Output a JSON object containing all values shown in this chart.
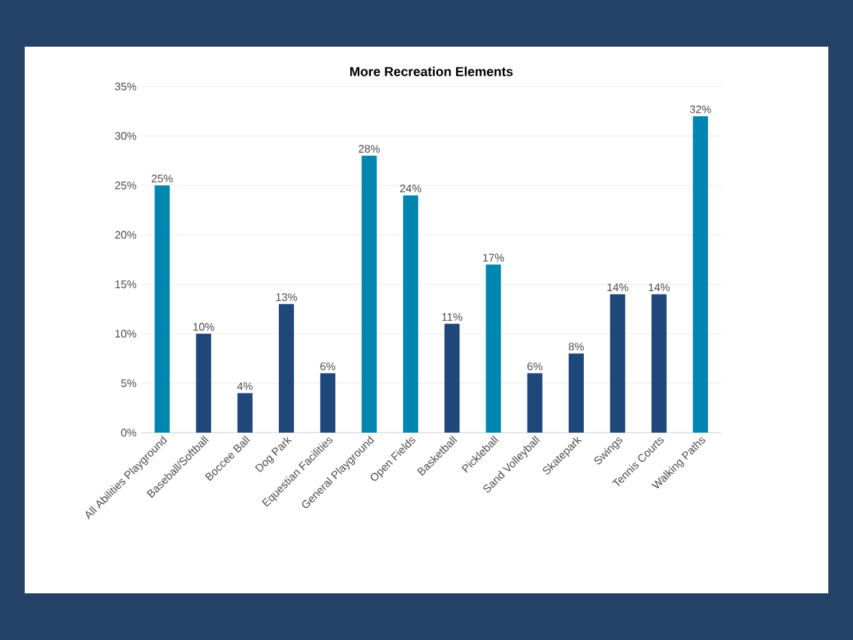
{
  "chart_data": {
    "type": "bar",
    "title": "More Recreation Elements",
    "categories": [
      "All Abilities Playground",
      "Baseball/Softball",
      "Boccee Ball",
      "Dog Park",
      "Equestian Facilities",
      "General Playground",
      "Open Fields",
      "Basketball",
      "Pickleball",
      "Sand Volleyball",
      "Skatepark",
      "Swings",
      "Tennis Courts",
      "Walking Paths"
    ],
    "values": [
      25,
      10,
      4,
      13,
      6,
      28,
      24,
      11,
      17,
      6,
      8,
      14,
      14,
      32
    ],
    "value_labels": [
      "25%",
      "10%",
      "4%",
      "13%",
      "6%",
      "28%",
      "24%",
      "11%",
      "17%",
      "6%",
      "8%",
      "14%",
      "14%",
      "32%"
    ],
    "colors": [
      "#0086b0",
      "#1f477a",
      "#1f477a",
      "#1f477a",
      "#1f477a",
      "#0086b0",
      "#0086b0",
      "#1f477a",
      "#0086b0",
      "#1f477a",
      "#1f477a",
      "#1f477a",
      "#1f477a",
      "#0086b0"
    ],
    "ylim": [
      0,
      35
    ],
    "yticks": [
      {
        "value": 0,
        "label": "0%"
      },
      {
        "value": 5,
        "label": "5%"
      },
      {
        "value": 10,
        "label": "10%"
      },
      {
        "value": 15,
        "label": "15%"
      },
      {
        "value": 20,
        "label": "20%"
      },
      {
        "value": 25,
        "label": "25%"
      },
      {
        "value": 30,
        "label": "30%"
      },
      {
        "value": 35,
        "label": "35%"
      }
    ],
    "grid": "y"
  }
}
